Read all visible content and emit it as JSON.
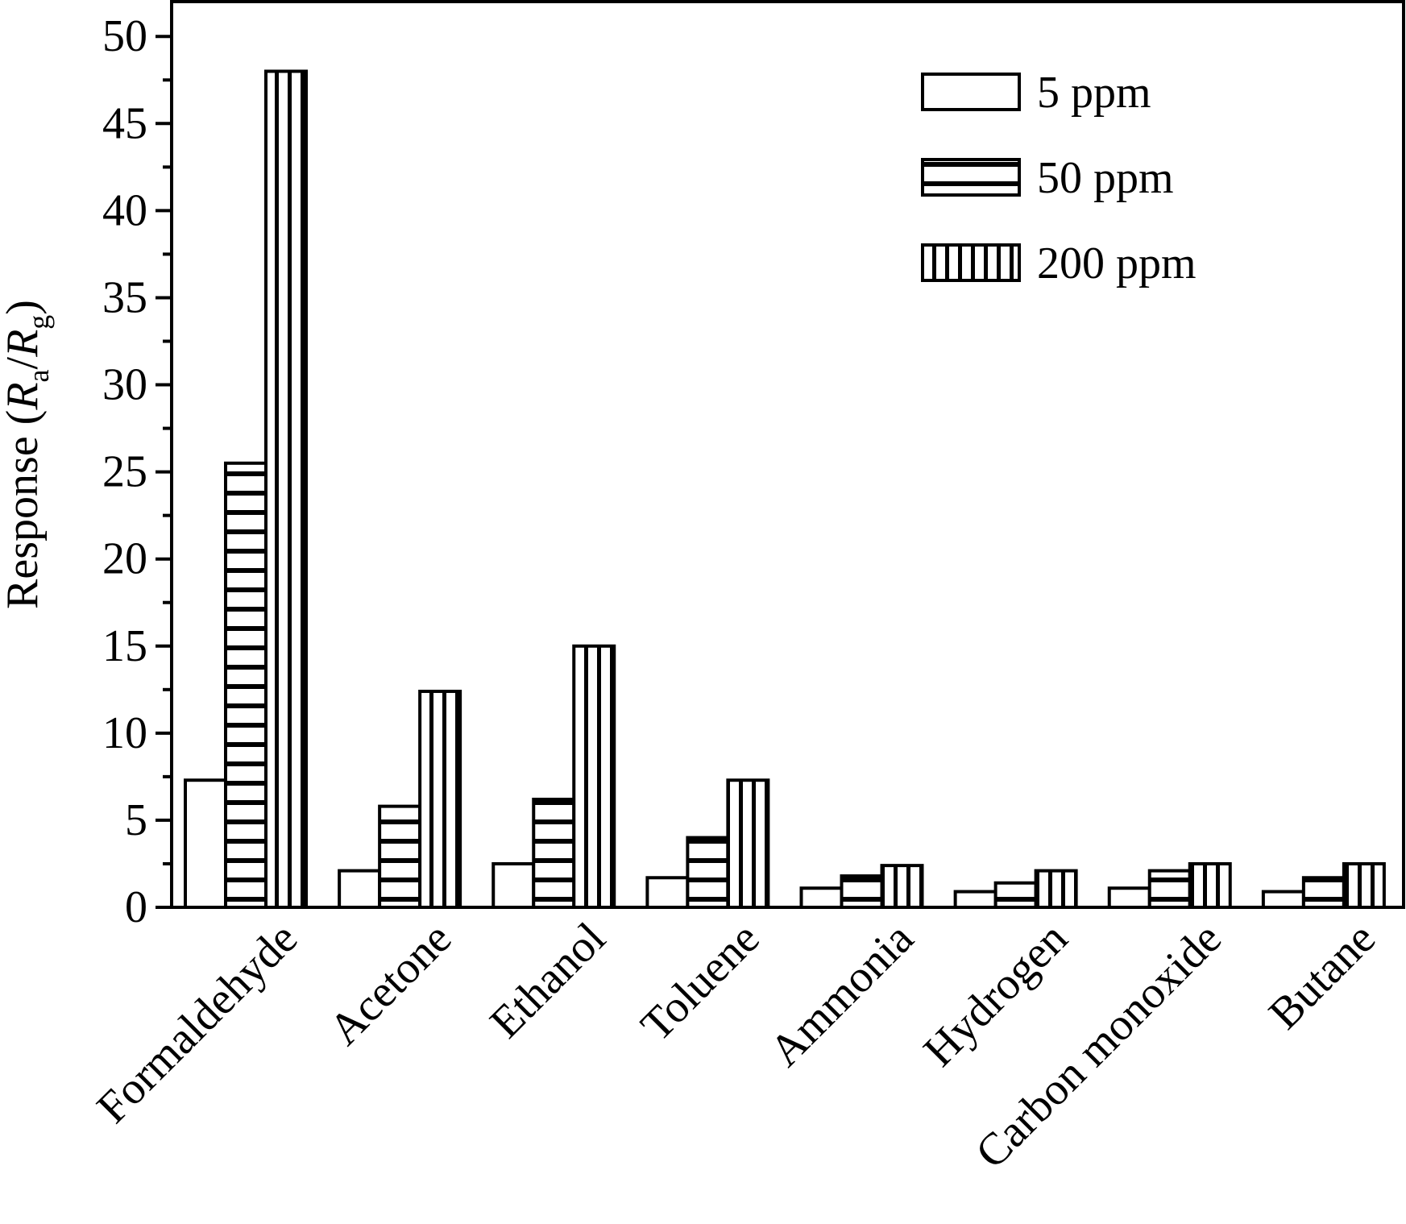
{
  "chart_data": {
    "type": "bar",
    "categories": [
      "Formaldehyde",
      "Acetone",
      "Ethanol",
      "Toluene",
      "Ammonia",
      "Hydrogen",
      "Carbon monoxide",
      "Butane"
    ],
    "series": [
      {
        "name": "5 ppm",
        "pattern": "none",
        "values": [
          7.3,
          2.1,
          2.5,
          1.7,
          1.1,
          0.9,
          1.1,
          0.9
        ]
      },
      {
        "name": "50 ppm",
        "pattern": "horizontal",
        "values": [
          25.5,
          5.8,
          6.2,
          4.0,
          1.8,
          1.4,
          2.1,
          1.7
        ]
      },
      {
        "name": "200 ppm",
        "pattern": "vertical",
        "values": [
          48.0,
          12.4,
          15.0,
          7.3,
          2.4,
          2.1,
          2.5,
          2.5
        ]
      }
    ],
    "ylabel": {
      "prefix": "Response (",
      "R": "R",
      "sub_a": "a",
      "slash": "/",
      "sub_g": "g",
      "suffix": ")"
    },
    "xlabel": "",
    "ylim": [
      0,
      52
    ],
    "yticks": [
      0,
      5,
      10,
      15,
      20,
      25,
      30,
      35,
      40,
      45,
      50
    ],
    "grid": false,
    "legend_position": "top-right",
    "colors": {
      "stroke": "#000000",
      "fill": "#ffffff"
    }
  }
}
